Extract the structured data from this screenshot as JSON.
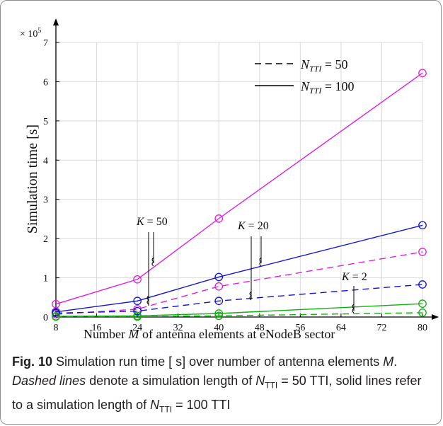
{
  "chart_data": {
    "type": "line",
    "x": [
      8,
      24,
      40,
      80
    ],
    "xlabel_prefix": "Number",
    "xlabel_var": "M",
    "xlabel_suffix": "of antenna elements at eNodeB sector",
    "ylabel": "Simulation time [s]",
    "y_multiplier": "× 10",
    "y_multiplier_exp": "5",
    "xlim": [
      8,
      80
    ],
    "ylim": [
      0,
      7
    ],
    "xticks": [
      8,
      16,
      24,
      32,
      40,
      48,
      56,
      64,
      72,
      80
    ],
    "yticks": [
      0,
      1,
      2,
      3,
      4,
      5,
      6,
      7
    ],
    "grid": true,
    "legend": [
      {
        "style": "dashed",
        "var": "N",
        "sub": "TTI",
        "eq": " = 50"
      },
      {
        "style": "solid",
        "var": "N",
        "sub": "TTI",
        "eq": " = 100"
      }
    ],
    "series": [
      {
        "color": "#e020e0",
        "dash": false,
        "values": [
          0.33,
          0.96,
          2.51,
          6.22
        ]
      },
      {
        "color": "#e020e0",
        "dash": true,
        "values": [
          0.07,
          0.2,
          0.78,
          1.66
        ]
      },
      {
        "color": "#1515cc",
        "dash": false,
        "values": [
          0.13,
          0.41,
          1.02,
          2.34
        ]
      },
      {
        "color": "#1515cc",
        "dash": true,
        "values": [
          0.1,
          0.15,
          0.41,
          0.83
        ]
      },
      {
        "color": "#10b010",
        "dash": false,
        "values": [
          0.02,
          0.03,
          0.09,
          0.34
        ]
      },
      {
        "color": "#10b010",
        "dash": true,
        "values": [
          0.01,
          0.01,
          0.03,
          0.11
        ]
      }
    ],
    "annotations": [
      {
        "var": "K",
        "eq": " = 50"
      },
      {
        "var": "K",
        "eq": " = 20"
      },
      {
        "var": "K",
        "eq": " = 2"
      }
    ]
  },
  "caption": {
    "fig_label": "Fig. 10",
    "text1": " Simulation run time [ s] over number of antenna elements ",
    "var_m": "M",
    "text2": ".",
    "dashed_lines": "Dashed lines",
    "text3": " denote a simulation length of ",
    "n": "N",
    "tti": "TTI",
    "text4": " = 50 TTI, solid lines refer to a simulation length of ",
    "text5": " = 100 TTI"
  },
  "colors": {
    "magenta": "#e020e0",
    "blue": "#1515cc",
    "green": "#10b010",
    "grid": "#d9d9d9"
  }
}
